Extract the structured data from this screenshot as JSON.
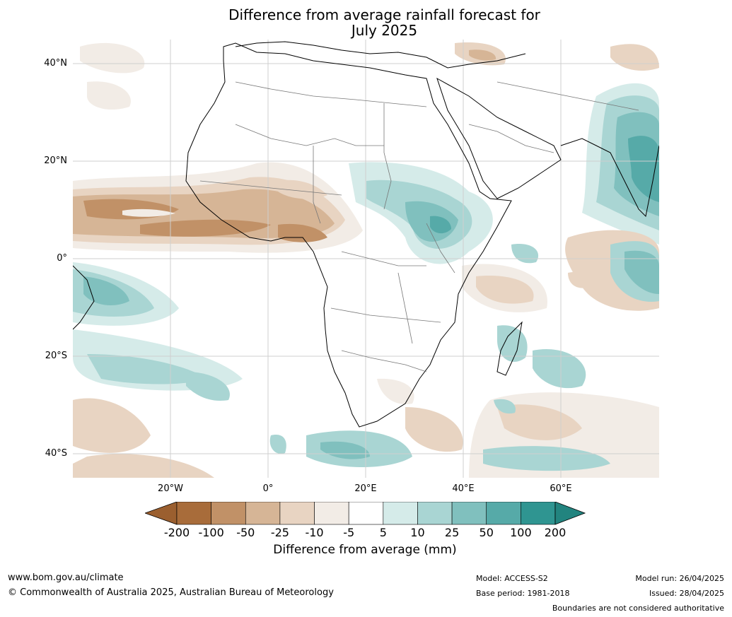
{
  "title": {
    "line1": "Difference from average rainfall forecast for",
    "line2": "July 2025"
  },
  "map": {
    "lat_labels": [
      "40°N",
      "20°N",
      "0°",
      "20°S",
      "40°S"
    ],
    "lon_labels": [
      "20°W",
      "0°",
      "20°E",
      "40°E",
      "60°E"
    ],
    "colors": {
      "dry": [
        "#a86c3a",
        "#c19167",
        "#d6b596",
        "#e8d4c2",
        "#f2ece6"
      ],
      "neutral": "#ffffff",
      "wet": [
        "#d5ebe9",
        "#a9d5d3",
        "#80c0be",
        "#56aaa8",
        "#2f9591"
      ]
    }
  },
  "colorbar": {
    "ticks": [
      "-200",
      "-100",
      "-50",
      "-25",
      "-10",
      "-5",
      "5",
      "10",
      "25",
      "50",
      "100",
      "200"
    ],
    "colors": [
      "#a86c3a",
      "#c19167",
      "#d6b596",
      "#e8d4c2",
      "#f2ece6",
      "#ffffff",
      "#d5ebe9",
      "#a9d5d3",
      "#80c0be",
      "#56aaa8",
      "#2f9591"
    ],
    "under_color": "#9b5f2f",
    "over_color": "#22847f",
    "label": "Difference from average (mm)"
  },
  "footer": {
    "url": "www.bom.gov.au/climate",
    "copyright": "© Commonwealth of Australia 2025, Australian Bureau of Meteorology",
    "model": "Model: ACCESS-S2",
    "base_period": "Base period: 1981-2018",
    "model_run": "Model run: 26/04/2025",
    "issued": "Issued: 28/04/2025",
    "disclaimer": "Boundaries are not considered authoritative"
  }
}
